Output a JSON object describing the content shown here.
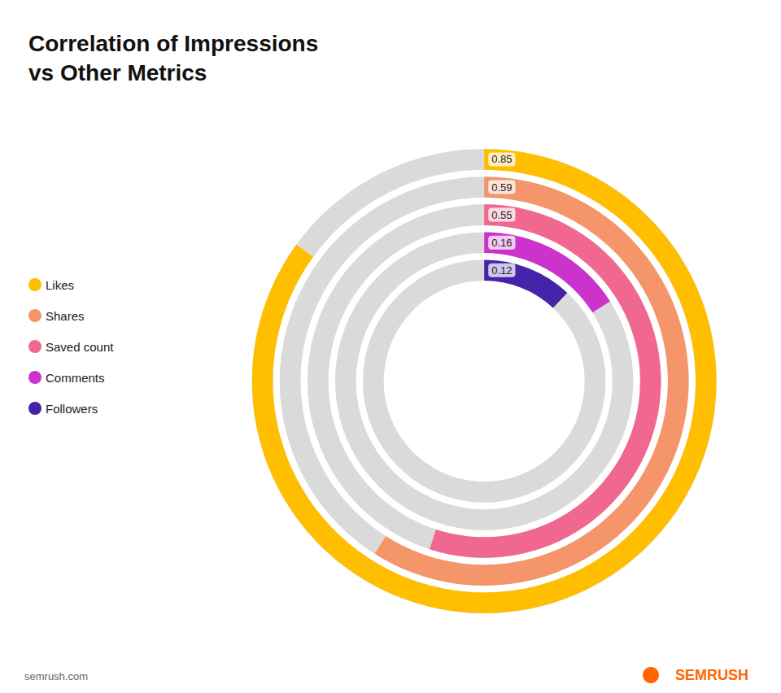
{
  "chart_data": {
    "type": "radial_bar",
    "title": "Correlation of Impressions\nvs Other Metrics",
    "categories": [
      "Likes",
      "Shares",
      "Saved count",
      "Comments",
      "Followers"
    ],
    "values": [
      0.85,
      0.59,
      0.55,
      0.16,
      0.12
    ],
    "colors": [
      "#FFBF00",
      "#F4956A",
      "#F06890",
      "#CC33CC",
      "#4422AA"
    ],
    "ylim": [
      0,
      1
    ],
    "tick_labels": false,
    "grid": false,
    "legend": "left",
    "data_labels": true,
    "annotations": [
      "semrush.com",
      "SEMRUSH"
    ]
  }
}
